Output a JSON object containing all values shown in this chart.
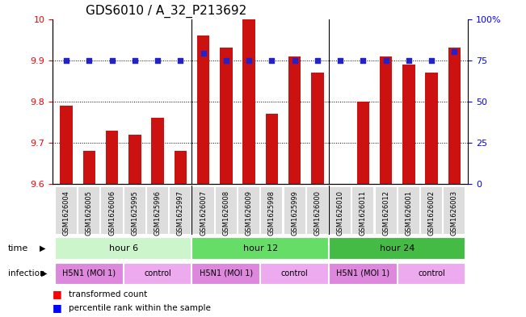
{
  "title": "GDS6010 / A_32_P213692",
  "samples": [
    "GSM1626004",
    "GSM1626005",
    "GSM1626006",
    "GSM1625995",
    "GSM1625996",
    "GSM1625997",
    "GSM1626007",
    "GSM1626008",
    "GSM1626009",
    "GSM1625998",
    "GSM1625999",
    "GSM1626000",
    "GSM1626010",
    "GSM1626011",
    "GSM1626012",
    "GSM1626001",
    "GSM1626002",
    "GSM1626003"
  ],
  "bar_values": [
    9.79,
    9.68,
    9.73,
    9.72,
    9.76,
    9.68,
    9.96,
    9.93,
    10.0,
    9.77,
    9.91,
    9.87,
    9.6,
    9.8,
    9.91,
    9.89,
    9.87,
    9.93
  ],
  "dot_values": [
    75,
    75,
    75,
    75,
    75,
    75,
    79,
    75,
    75,
    75,
    75,
    75,
    75,
    75,
    75,
    75,
    75,
    80
  ],
  "ylim_left": [
    9.6,
    10.0
  ],
  "ylim_right": [
    0,
    100
  ],
  "y_ticks_left": [
    9.6,
    9.7,
    9.8,
    9.9,
    10.0
  ],
  "y_tick_labels_left": [
    "9.6",
    "9.7",
    "9.8",
    "9.9",
    "10"
  ],
  "y_ticks_right": [
    0,
    25,
    50,
    75,
    100
  ],
  "y_tick_labels_right": [
    "0",
    "25",
    "50",
    "75",
    "100%"
  ],
  "groups": [
    {
      "label": "hour 6",
      "start": 0,
      "end": 6,
      "color": "#ccf5cc"
    },
    {
      "label": "hour 12",
      "start": 6,
      "end": 12,
      "color": "#66dd66"
    },
    {
      "label": "hour 24",
      "start": 12,
      "end": 18,
      "color": "#44bb44"
    }
  ],
  "infections": [
    {
      "label": "H5N1 (MOI 1)",
      "start": 0,
      "end": 3,
      "color": "#dd88dd"
    },
    {
      "label": "control",
      "start": 3,
      "end": 6,
      "color": "#eeaaee"
    },
    {
      "label": "H5N1 (MOI 1)",
      "start": 6,
      "end": 9,
      "color": "#dd88dd"
    },
    {
      "label": "control",
      "start": 9,
      "end": 12,
      "color": "#eeaaee"
    },
    {
      "label": "H5N1 (MOI 1)",
      "start": 12,
      "end": 15,
      "color": "#dd88dd"
    },
    {
      "label": "control",
      "start": 15,
      "end": 18,
      "color": "#eeaaee"
    }
  ],
  "bar_color": "#cc1111",
  "dot_color": "#2222cc",
  "bar_width": 0.55,
  "background_color": "#ffffff",
  "title_fontsize": 11,
  "tick_fontsize": 8,
  "sample_fontsize": 6,
  "annot_fontsize": 8
}
